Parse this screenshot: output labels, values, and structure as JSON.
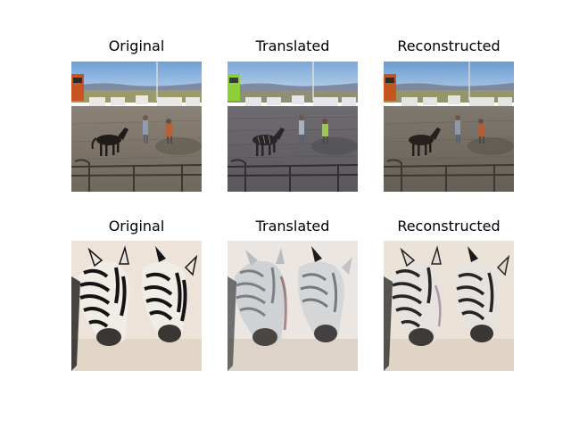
{
  "figure": {
    "rows": [
      {
        "row_id": "horse-row",
        "panels": [
          {
            "title": "Original",
            "variant": "original"
          },
          {
            "title": "Translated",
            "variant": "translated"
          },
          {
            "title": "Reconstructed",
            "variant": "reconstructed"
          }
        ]
      },
      {
        "row_id": "zebra-row",
        "panels": [
          {
            "title": "Original",
            "variant": "original"
          },
          {
            "title": "Translated",
            "variant": "translated"
          },
          {
            "title": "Reconstructed",
            "variant": "reconstructed"
          }
        ]
      }
    ]
  }
}
